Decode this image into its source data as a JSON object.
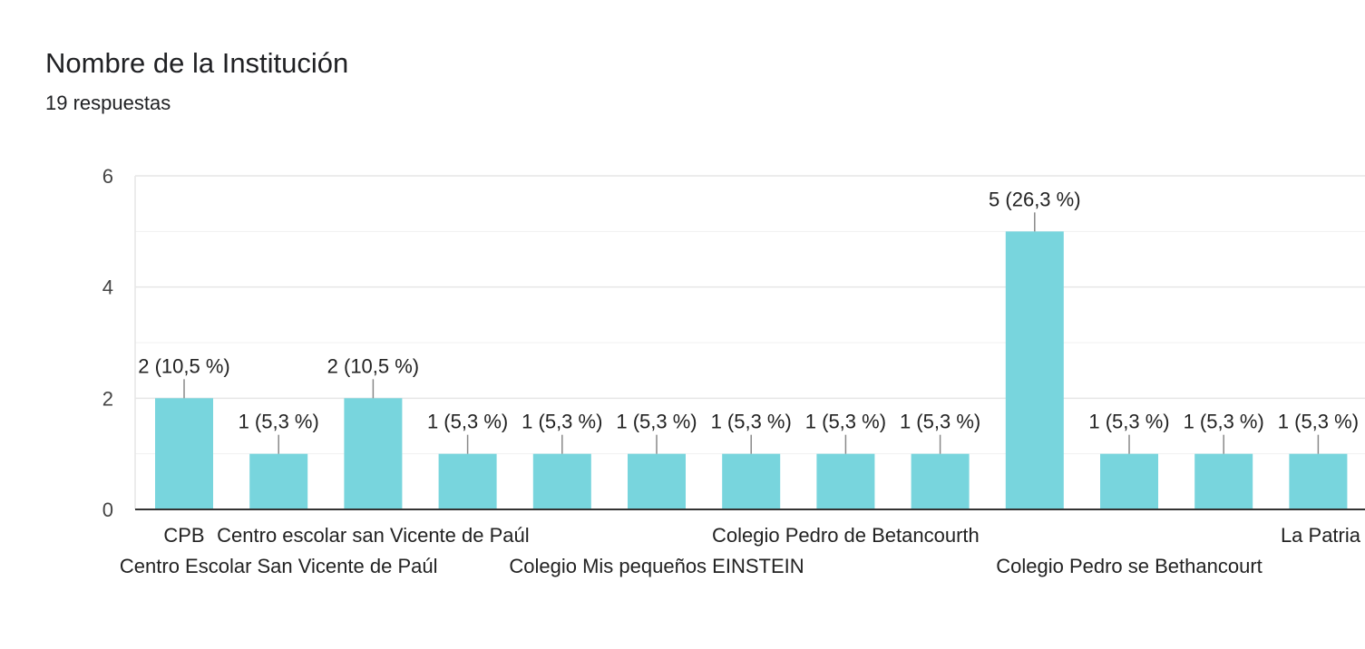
{
  "header": {
    "title": "Nombre de la Institución",
    "response_count": "19 respuestas"
  },
  "colors": {
    "bar": "#78d5dd",
    "grid": "#e6e6e6",
    "baseline": "#333333",
    "text": "#222222",
    "tick_text": "#444444",
    "leader": "#888888"
  },
  "chart_data": {
    "type": "bar",
    "categories": [
      "CPB",
      "Centro Escolar San Vicente de Paúl",
      "Centro escolar san Vicente de Paúl",
      "",
      "",
      "Colegio Mis pequeños EINSTEIN",
      "",
      "Colegio Pedro de Betancourth",
      "",
      "",
      "Colegio Pedro se Bethancourt",
      "",
      "La Patria"
    ],
    "values": [
      2,
      1,
      2,
      1,
      1,
      1,
      1,
      1,
      1,
      5,
      1,
      1,
      1
    ],
    "data_labels": [
      "2 (10,5 %)",
      "1 (5,3 %)",
      "2 (10,5 %)",
      "1 (5,3 %)",
      "1 (5,3 %)",
      "1 (5,3 %)",
      "1 (5,3 %)",
      "1 (5,3 %)",
      "1 (5,3 %)",
      "5 (26,3 %)",
      "1 (5,3 %)",
      "1 (5,3 %)",
      "1 (5,3 %)"
    ],
    "ylim": [
      0,
      6
    ],
    "yticks": [
      0,
      2,
      4,
      6
    ],
    "ytick_labels": [
      "0",
      "2",
      "4",
      "6"
    ],
    "minor_gridlines": [
      1,
      3,
      5
    ],
    "grid": true,
    "legend": "none"
  }
}
